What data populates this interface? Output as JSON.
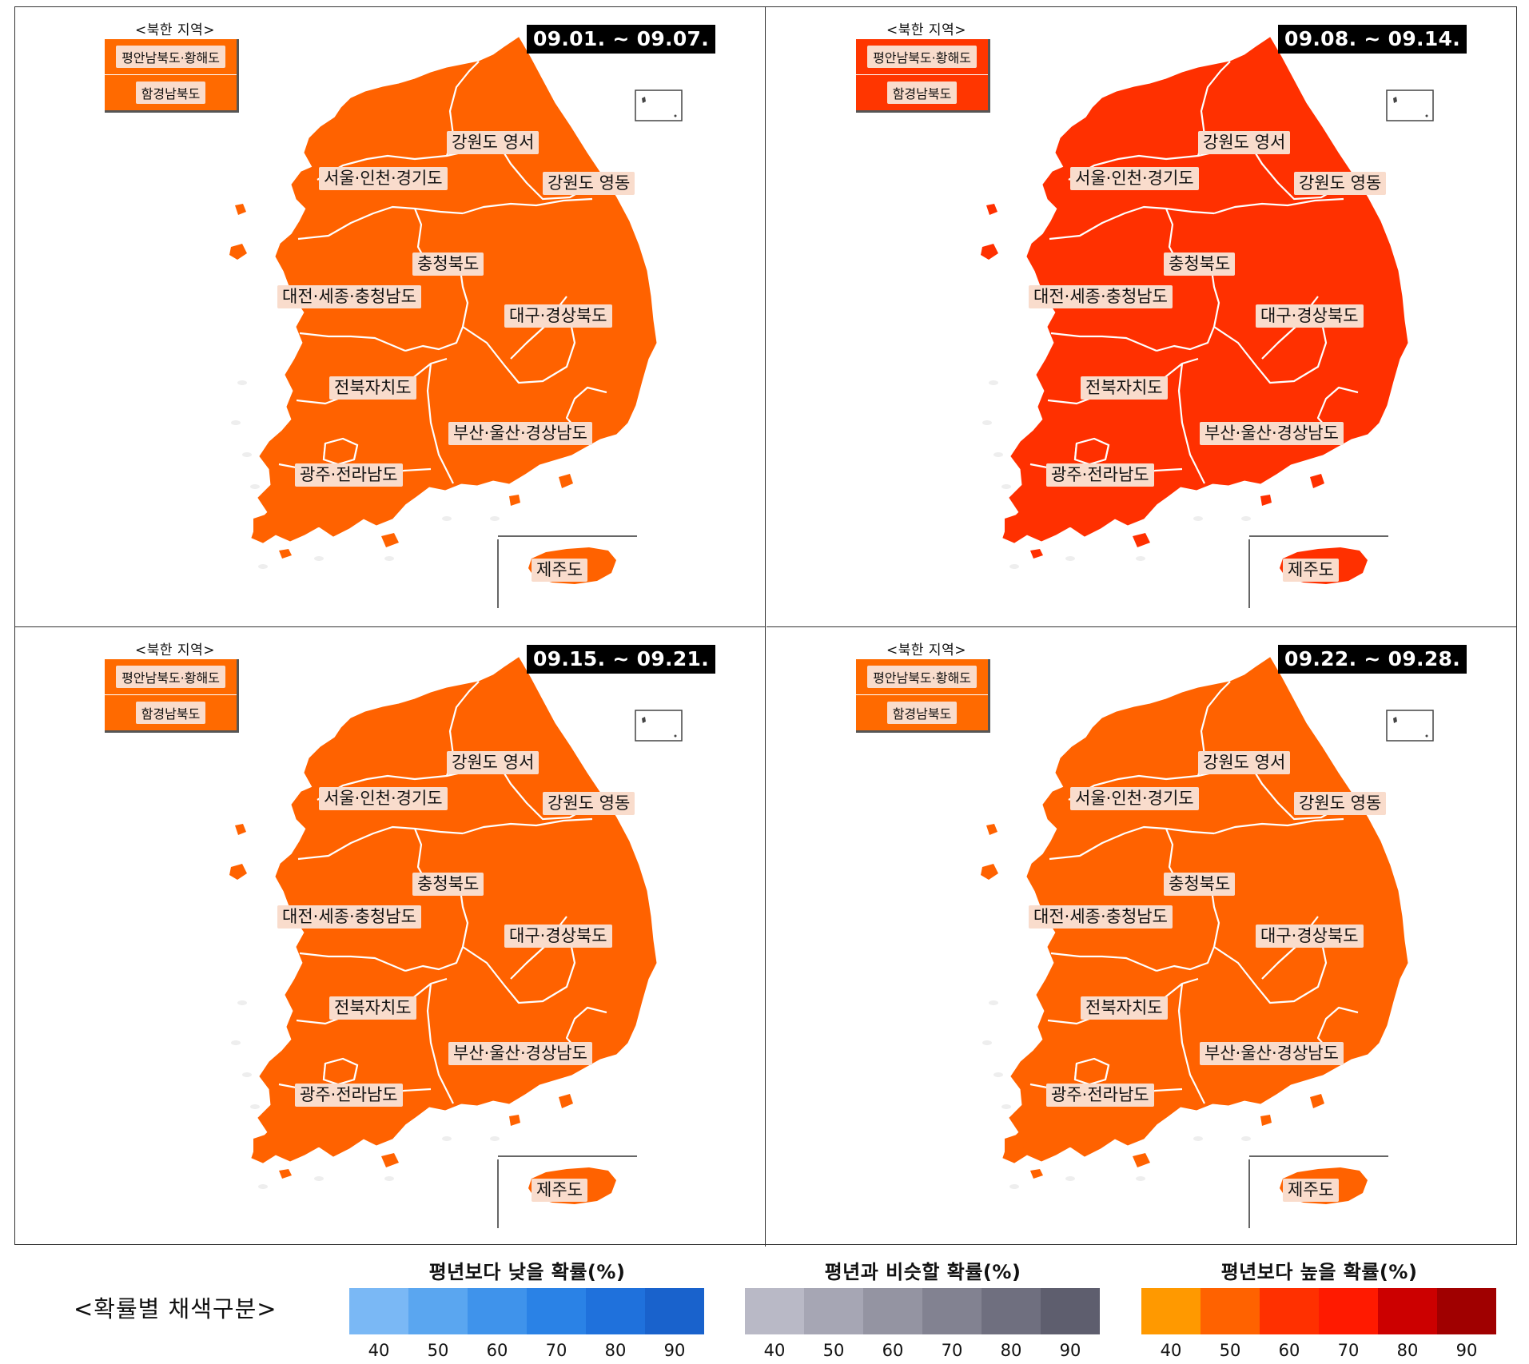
{
  "panels": [
    {
      "date_range": "09.01. ~ 09.07.",
      "fill": "#ff6200",
      "north_fill": "#ff6a00",
      "north_title": "<북한 지역>",
      "north_regions": [
        "평안남북도·황해도",
        "함경남북도"
      ],
      "regions": [
        "강원도 영서",
        "서울·인천·경기도",
        "강원도 영동",
        "충청북도",
        "대전·세종·충청남도",
        "대구·경상북도",
        "전북자치도",
        "부산·울산·경상남도",
        "광주·전라남도",
        "제주도"
      ]
    },
    {
      "date_range": "09.08. ~ 09.14.",
      "fill": "#ff3000",
      "north_fill": "#ff3600",
      "north_title": "<북한 지역>",
      "north_regions": [
        "평안남북도·황해도",
        "함경남북도"
      ],
      "regions": [
        "강원도 영서",
        "서울·인천·경기도",
        "강원도 영동",
        "충청북도",
        "대전·세종·충청남도",
        "대구·경상북도",
        "전북자치도",
        "부산·울산·경상남도",
        "광주·전라남도",
        "제주도"
      ]
    },
    {
      "date_range": "09.15. ~ 09.21.",
      "fill": "#ff6200",
      "north_fill": "#ff6a00",
      "north_title": "<북한 지역>",
      "north_regions": [
        "평안남북도·황해도",
        "함경남북도"
      ],
      "regions": [
        "강원도 영서",
        "서울·인천·경기도",
        "강원도 영동",
        "충청북도",
        "대전·세종·충청남도",
        "대구·경상북도",
        "전북자치도",
        "부산·울산·경상남도",
        "광주·전라남도",
        "제주도"
      ]
    },
    {
      "date_range": "09.22. ~ 09.28.",
      "fill": "#ff6200",
      "north_fill": "#ff6a00",
      "north_title": "<북한 지역>",
      "north_regions": [
        "평안남북도·황해도",
        "함경남북도"
      ],
      "regions": [
        "강원도 영서",
        "서울·인천·경기도",
        "강원도 영동",
        "충청북도",
        "대전·세종·충청남도",
        "대구·경상북도",
        "전북자치도",
        "부산·울산·경상남도",
        "광주·전라남도",
        "제주도"
      ]
    }
  ],
  "legend": {
    "title": "<확률별 채색구분>",
    "groups": [
      {
        "heading": "평년보다 낮을 확률(%)",
        "ticks": [
          "40",
          "50",
          "60",
          "70",
          "80",
          "90"
        ],
        "colors": [
          "#7ab8f5",
          "#5aa6f0",
          "#3f93eb",
          "#2a82e6",
          "#1f71dc",
          "#1962cc"
        ]
      },
      {
        "heading": "평년과 비슷할 확률(%)",
        "ticks": [
          "40",
          "50",
          "60",
          "70",
          "80",
          "90"
        ],
        "colors": [
          "#b9b9c6",
          "#a6a6b4",
          "#9494a2",
          "#828291",
          "#6f6f7f",
          "#5e5e6e"
        ]
      },
      {
        "heading": "평년보다 높을 확률(%)",
        "ticks": [
          "40",
          "50",
          "60",
          "70",
          "80",
          "90"
        ],
        "colors": [
          "#ff9900",
          "#ff6200",
          "#ff3000",
          "#ff1a00",
          "#cc0000",
          "#a00000"
        ]
      }
    ]
  }
}
